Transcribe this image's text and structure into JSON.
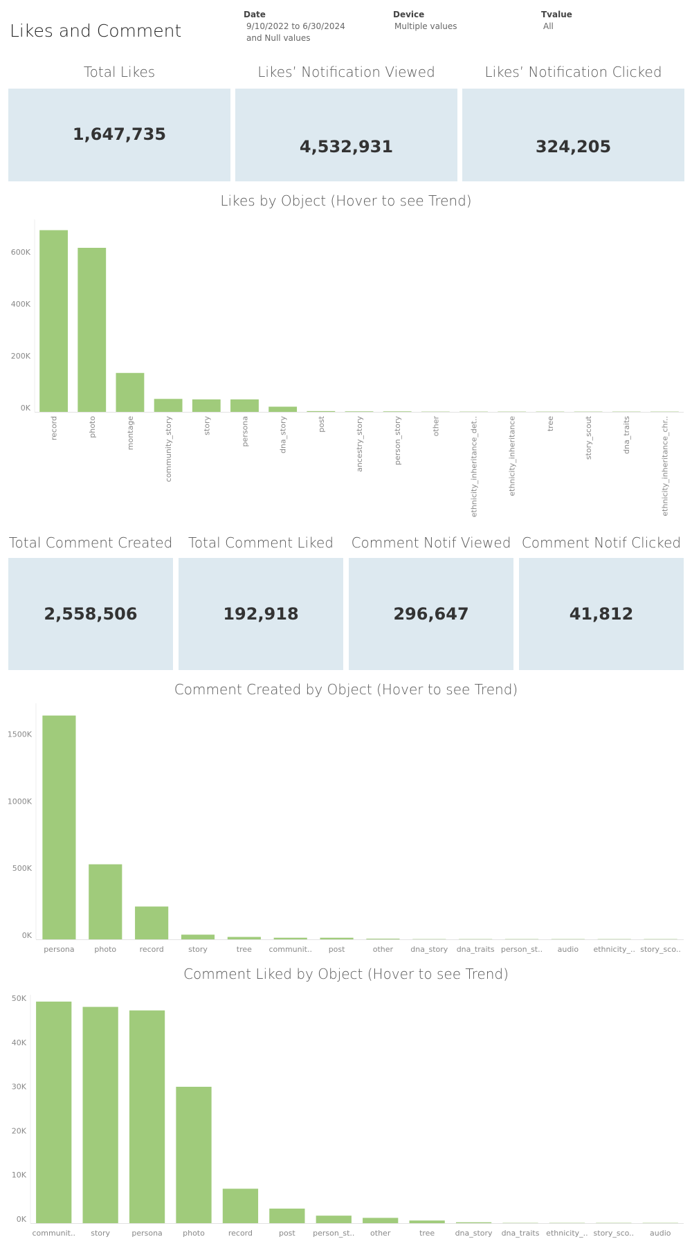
{
  "title": "Likes and Comment",
  "filters": [
    {
      "label": "Date",
      "value_lines": [
        "9/10/2022 to 6/30/2024",
        "and Null values"
      ]
    },
    {
      "label": "Device",
      "value_lines": [
        "Multiple values"
      ]
    },
    {
      "label": "Tvalue",
      "value_lines": [
        "All"
      ]
    }
  ],
  "likes_kpis": [
    {
      "label": "Total Likes",
      "value": "1,647,735"
    },
    {
      "label": "Likes’ Notification Viewed",
      "value": "4,532,931"
    },
    {
      "label": "Likes’ Notification Clicked",
      "value": "324,205"
    }
  ],
  "comment_kpis": [
    {
      "label": "Total Comment Created",
      "value": "2,558,506"
    },
    {
      "label": "Total Comment Liked",
      "value": "192,918"
    },
    {
      "label": "Comment Notif Viewed",
      "value": "296,647"
    },
    {
      "label": "Comment Notif Clicked",
      "value": "41,812"
    }
  ],
  "colors": {
    "bar": "#a0cb7b",
    "kpi_bg": "#dde9f0",
    "axis_text": "#888888"
  },
  "chart_data": [
    {
      "type": "bar",
      "title": "Likes by Object (Hover to see Trend)",
      "categories": [
        "record",
        "photo",
        "montage",
        "community_story",
        "story",
        "persona",
        "dna_story",
        "post",
        "ancestry_story",
        "person_story",
        "other",
        "ethnicity_inheritance_det..",
        "ethnicity_inheritance",
        "tree",
        "story_scout",
        "dna_traits",
        "ethnicity_inheritance_chr.."
      ],
      "values": [
        700000,
        632000,
        150000,
        50000,
        48000,
        48000,
        20000,
        3000,
        2000,
        2000,
        200,
        100,
        100,
        50,
        30,
        20,
        10
      ],
      "yticks": [
        0,
        200000,
        400000,
        600000
      ],
      "ytick_labels": [
        "0K",
        "200K",
        "400K",
        "600K"
      ],
      "ylim": [
        0,
        720000
      ],
      "label_rotation": "vertical",
      "grid": false
    },
    {
      "type": "bar",
      "title": "Comment Created by Object (Hover to see Trend)",
      "categories": [
        "persona",
        "photo",
        "record",
        "story",
        "tree",
        "communit..",
        "post",
        "other",
        "dna_story",
        "dna_traits",
        "person_st..",
        "audio",
        "ethnicity_..",
        "story_sco.."
      ],
      "values": [
        1670000,
        560000,
        245000,
        35000,
        18000,
        12000,
        12000,
        5000,
        500,
        300,
        200,
        100,
        50,
        30
      ],
      "yticks": [
        0,
        500000,
        1000000,
        1500000
      ],
      "ytick_labels": [
        "0K",
        "500K",
        "1000K",
        "1500K"
      ],
      "ylim": [
        0,
        1720000
      ],
      "label_rotation": "horizontal",
      "grid": false
    },
    {
      "type": "bar",
      "title": "Comment Liked by Object (Hover to see Trend)",
      "categories": [
        "communit..",
        "story",
        "persona",
        "photo",
        "record",
        "post",
        "person_st..",
        "other",
        "tree",
        "dna_story",
        "dna_traits",
        "ethnicity_..",
        "story_sco..",
        "audio"
      ],
      "values": [
        50200,
        49000,
        48200,
        30900,
        7800,
        3300,
        1700,
        1200,
        600,
        200,
        50,
        30,
        20,
        10
      ],
      "yticks": [
        0,
        10000,
        20000,
        30000,
        40000,
        50000
      ],
      "ytick_labels": [
        "0K",
        "10K",
        "20K",
        "30K",
        "40K",
        "50K"
      ],
      "ylim": [
        0,
        50500
      ],
      "label_rotation": "horizontal",
      "grid": false
    }
  ]
}
